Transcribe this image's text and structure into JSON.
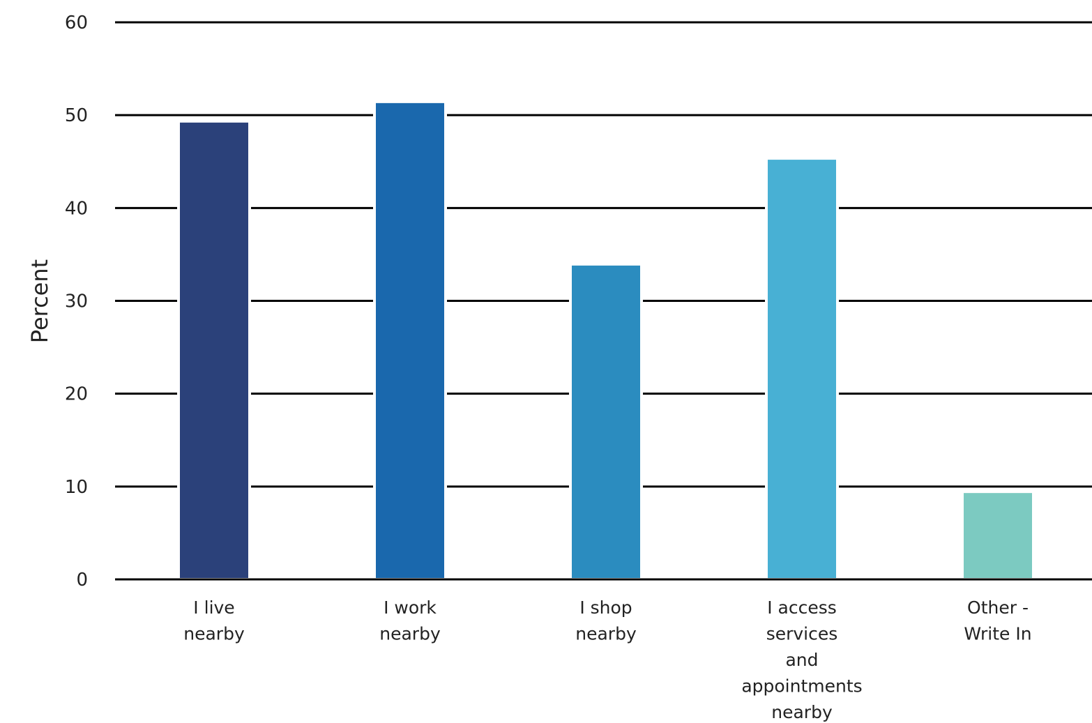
{
  "chart_data": {
    "type": "bar",
    "title": "",
    "xlabel": "",
    "ylabel": "Percent",
    "ylim": [
      0,
      60
    ],
    "yticks": [
      0,
      10,
      20,
      30,
      40,
      50,
      60
    ],
    "grid": true,
    "categories": [
      [
        "I live",
        "nearby"
      ],
      [
        "I work",
        "nearby"
      ],
      [
        "I shop",
        "nearby"
      ],
      [
        "I access",
        "services",
        "and",
        "appointments",
        "nearby"
      ],
      [
        "Other -",
        "Write In"
      ]
    ],
    "values": [
      49.2,
      51.3,
      33.8,
      45.2,
      9.3
    ],
    "colors": [
      "#2b417a",
      "#1a68ad",
      "#2b8cbf",
      "#48b0d4",
      "#7ccac1"
    ]
  }
}
